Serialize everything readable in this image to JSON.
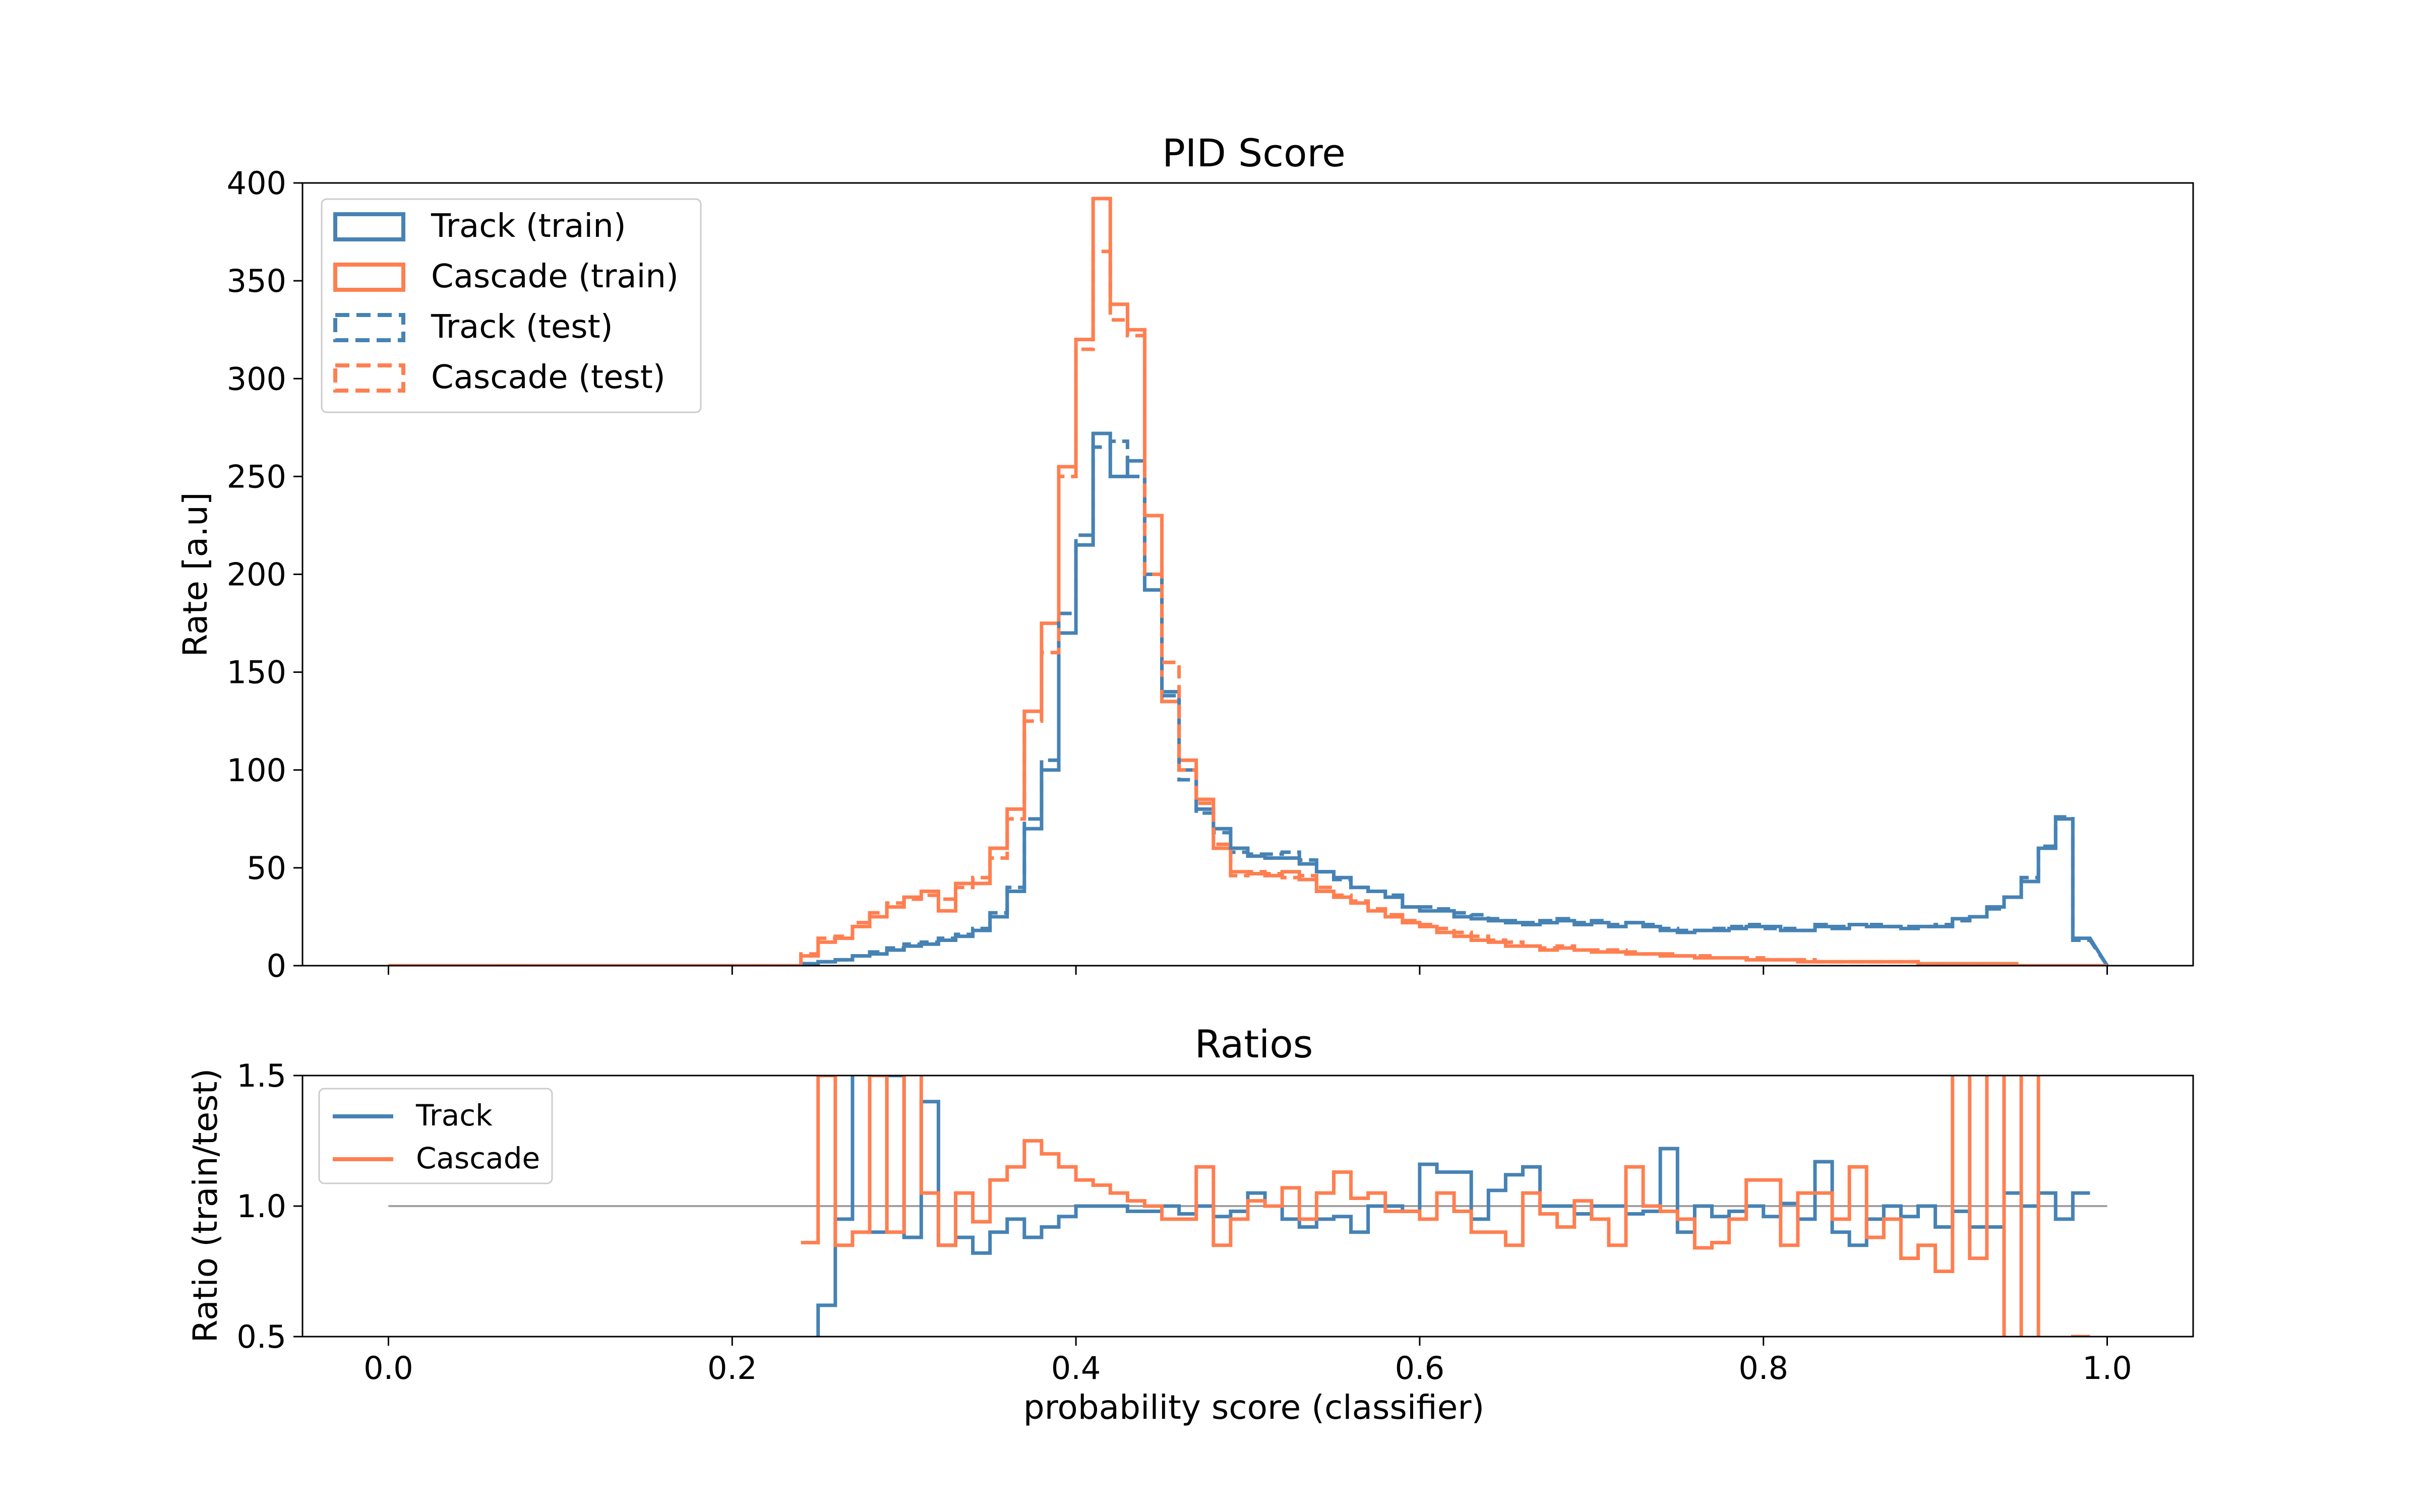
{
  "colors": {
    "track": "#4682b4",
    "cascade": "#ff7f50",
    "reference": "#a0a0a0"
  },
  "chart_data": [
    {
      "type": "histogram",
      "title": "PID Score",
      "xlabel": "",
      "ylabel": "Rate [a.u]",
      "xlim": [
        -0.05,
        1.05
      ],
      "ylim": [
        0,
        400
      ],
      "grid": false,
      "legend_position": "top-left",
      "yticks": [
        "0",
        "50",
        "100",
        "150",
        "200",
        "250",
        "300",
        "350",
        "400"
      ],
      "bin_edges": [
        0.24,
        0.25,
        0.26,
        0.27,
        0.28,
        0.29,
        0.3,
        0.31,
        0.32,
        0.33,
        0.34,
        0.35,
        0.36,
        0.37,
        0.38,
        0.39,
        0.4,
        0.41,
        0.42,
        0.43,
        0.44,
        0.45,
        0.46,
        0.47,
        0.48,
        0.49,
        0.5,
        0.51,
        0.52,
        0.53,
        0.54,
        0.55,
        0.56,
        0.57,
        0.58,
        0.59,
        0.6,
        0.61,
        0.62,
        0.63,
        0.64,
        0.65,
        0.66,
        0.67,
        0.68,
        0.69,
        0.7,
        0.71,
        0.72,
        0.73,
        0.74,
        0.75,
        0.76,
        0.77,
        0.78,
        0.79,
        0.8,
        0.81,
        0.82,
        0.83,
        0.84,
        0.85,
        0.86,
        0.87,
        0.88,
        0.89,
        0.9,
        0.91,
        0.92,
        0.93,
        0.94,
        0.95,
        0.96,
        0.97,
        0.98,
        0.99,
        1.0
      ],
      "series": [
        {
          "name": "Track (train)",
          "color_key": "track",
          "dashed": false,
          "values": [
            1,
            2,
            3,
            5,
            6,
            8,
            10,
            11,
            13,
            15,
            18,
            25,
            38,
            70,
            100,
            170,
            215,
            272,
            250,
            258,
            192,
            140,
            100,
            80,
            70,
            60,
            56,
            55,
            55,
            52,
            48,
            45,
            40,
            38,
            35,
            30,
            28,
            28,
            25,
            24,
            23,
            22,
            21,
            22,
            23,
            21,
            22,
            20,
            22,
            20,
            18,
            17,
            18,
            18,
            19,
            20,
            20,
            18,
            18,
            20,
            19,
            21,
            20,
            20,
            19,
            20,
            20,
            24,
            25,
            30,
            35,
            43,
            60,
            75,
            14
          ]
        },
        {
          "name": "Cascade (train)",
          "color_key": "cascade",
          "dashed": false,
          "values": [
            5,
            12,
            14,
            20,
            25,
            30,
            35,
            38,
            28,
            42,
            42,
            60,
            80,
            130,
            175,
            255,
            320,
            392,
            338,
            325,
            230,
            135,
            105,
            85,
            60,
            48,
            47,
            46,
            48,
            44,
            38,
            35,
            32,
            28,
            25,
            22,
            20,
            17,
            15,
            13,
            12,
            10,
            10,
            8,
            9,
            8,
            7,
            7,
            6,
            6,
            5,
            5,
            4,
            4,
            4,
            3,
            3,
            3,
            2,
            2,
            2,
            2,
            2,
            2,
            2,
            1,
            1,
            1,
            1,
            1,
            0,
            0,
            0,
            0,
            0
          ]
        },
        {
          "name": "Track (test)",
          "color_key": "track",
          "dashed": true,
          "values": [
            1,
            2,
            3,
            5,
            7,
            9,
            11,
            12,
            14,
            16,
            19,
            27,
            40,
            75,
            105,
            180,
            220,
            265,
            268,
            250,
            200,
            138,
            95,
            78,
            68,
            58,
            57,
            57,
            58,
            54,
            48,
            44,
            40,
            38,
            36,
            30,
            30,
            29,
            27,
            26,
            24,
            23,
            22,
            23,
            24,
            22,
            23,
            21,
            22,
            21,
            19,
            18,
            18,
            19,
            20,
            21,
            19,
            19,
            18,
            21,
            20,
            21,
            21,
            20,
            20,
            20,
            21,
            23,
            25,
            29,
            35,
            45,
            61,
            76,
            13
          ]
        },
        {
          "name": "Cascade (test)",
          "color_key": "cascade",
          "dashed": true,
          "values": [
            6,
            14,
            15,
            22,
            27,
            32,
            34,
            36,
            34,
            40,
            45,
            55,
            75,
            125,
            160,
            250,
            315,
            365,
            330,
            322,
            200,
            155,
            100,
            83,
            62,
            46,
            48,
            47,
            45,
            46,
            40,
            36,
            33,
            29,
            26,
            23,
            21,
            19,
            17,
            15,
            13,
            12,
            10,
            9,
            10,
            8,
            8,
            8,
            7,
            6,
            6,
            5,
            5,
            4,
            4,
            4,
            3,
            3,
            3,
            2,
            2,
            2,
            2,
            2,
            2,
            1,
            1,
            1,
            1,
            1,
            1,
            0,
            0,
            0,
            0
          ]
        }
      ]
    },
    {
      "type": "line",
      "title": "Ratios",
      "xlabel": "probability score (classifier)",
      "ylabel": "Ratio (train/test)",
      "xlim": [
        -0.05,
        1.05
      ],
      "ylim": [
        0.5,
        1.5
      ],
      "grid": false,
      "legend_position": "top-left",
      "xticks": [
        "0.0",
        "0.2",
        "0.4",
        "0.6",
        "0.8",
        "1.0"
      ],
      "yticks": [
        "0.5",
        "1.0",
        "1.5"
      ],
      "reference_line": 1.0,
      "bin_edges": [
        0.24,
        0.25,
        0.26,
        0.27,
        0.28,
        0.29,
        0.3,
        0.31,
        0.32,
        0.33,
        0.34,
        0.35,
        0.36,
        0.37,
        0.38,
        0.39,
        0.4,
        0.41,
        0.42,
        0.43,
        0.44,
        0.45,
        0.46,
        0.47,
        0.48,
        0.49,
        0.5,
        0.51,
        0.52,
        0.53,
        0.54,
        0.55,
        0.56,
        0.57,
        0.58,
        0.59,
        0.6,
        0.61,
        0.62,
        0.63,
        0.64,
        0.65,
        0.66,
        0.67,
        0.68,
        0.69,
        0.7,
        0.71,
        0.72,
        0.73,
        0.74,
        0.75,
        0.76,
        0.77,
        0.78,
        0.79,
        0.8,
        0.81,
        0.82,
        0.83,
        0.84,
        0.85,
        0.86,
        0.87,
        0.88,
        0.89,
        0.9,
        0.91,
        0.92,
        0.93,
        0.94,
        0.95,
        0.96,
        0.97,
        0.98,
        0.99,
        1.0
      ],
      "series": [
        {
          "name": "Track",
          "color_key": "track",
          "values": [
            0.35,
            0.62,
            0.95,
            1.6,
            0.9,
            1.5,
            0.88,
            1.4,
            0.85,
            0.88,
            0.82,
            0.9,
            0.95,
            0.88,
            0.92,
            0.96,
            1.0,
            1.0,
            1.0,
            0.98,
            0.98,
            1.0,
            0.97,
            1.0,
            0.96,
            0.98,
            1.05,
            1.0,
            0.95,
            0.92,
            0.95,
            0.96,
            0.9,
            1.0,
            1.0,
            0.98,
            1.16,
            1.13,
            1.13,
            0.95,
            1.06,
            1.12,
            1.15,
            1.0,
            1.0,
            0.97,
            1.0,
            1.0,
            0.97,
            0.98,
            1.22,
            0.9,
            1.0,
            0.96,
            0.98,
            1.0,
            0.96,
            1.01,
            0.95,
            1.17,
            0.9,
            0.85,
            0.95,
            1.0,
            0.96,
            1.0,
            0.92,
            0.98,
            0.92,
            0.92,
            1.05,
            1.0,
            1.05,
            0.95,
            1.05
          ]
        },
        {
          "name": "Cascade",
          "color_key": "cascade",
          "values": [
            0.86,
            1.5,
            0.85,
            0.9,
            1.5,
            0.9,
            1.6,
            1.05,
            0.85,
            1.05,
            0.94,
            1.1,
            1.15,
            1.25,
            1.2,
            1.15,
            1.1,
            1.08,
            1.05,
            1.02,
            1.0,
            0.95,
            0.95,
            1.15,
            0.85,
            0.95,
            1.02,
            1.0,
            1.07,
            0.95,
            1.05,
            1.13,
            1.03,
            1.05,
            0.98,
            0.98,
            0.95,
            1.05,
            0.98,
            0.9,
            0.9,
            0.85,
            1.05,
            0.97,
            0.92,
            1.02,
            0.95,
            0.85,
            1.15,
            1.0,
            0.98,
            0.95,
            0.84,
            0.86,
            0.95,
            1.1,
            1.1,
            0.85,
            1.05,
            1.05,
            0.95,
            1.15,
            0.88,
            0.95,
            0.8,
            0.85,
            0.75,
            1.65,
            0.8,
            1.6,
            0.4,
            1.6,
            0.4,
            0.45,
            0.5
          ]
        }
      ]
    }
  ]
}
